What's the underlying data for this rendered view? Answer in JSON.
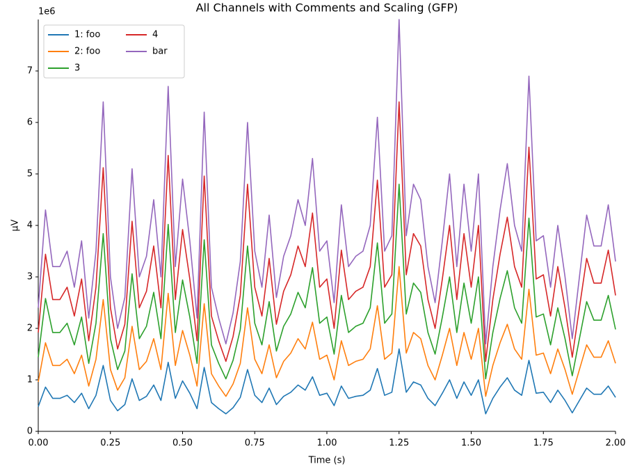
{
  "chart_data": {
    "type": "line",
    "title": "All Channels with Comments and Scaling (GFP)",
    "x_label": "Time (s)",
    "y_label": "µV",
    "y_offset_label": "1e6",
    "x": [
      0,
      0.025,
      0.05,
      0.075,
      0.1,
      0.125,
      0.15,
      0.175,
      0.2,
      0.225,
      0.25,
      0.275,
      0.3,
      0.325,
      0.35,
      0.375,
      0.4,
      0.425,
      0.45,
      0.475,
      0.5,
      0.525,
      0.55,
      0.575,
      0.6,
      0.625,
      0.65,
      0.675,
      0.7,
      0.725,
      0.75,
      0.775,
      0.8,
      0.825,
      0.85,
      0.875,
      0.9,
      0.925,
      0.95,
      0.975,
      1,
      1.025,
      1.05,
      1.075,
      1.1,
      1.125,
      1.15,
      1.175,
      1.2,
      1.225,
      1.25,
      1.275,
      1.3,
      1.325,
      1.35,
      1.375,
      1.4,
      1.425,
      1.45,
      1.475,
      1.5,
      1.525,
      1.55,
      1.575,
      1.6,
      1.625,
      1.65,
      1.675,
      1.7,
      1.725,
      1.75,
      1.775,
      1.8,
      1.825,
      1.85,
      1.875,
      1.9,
      1.925,
      1.95,
      1.975,
      2
    ],
    "series": [
      {
        "name": "1: foo",
        "color": "#1f77b4",
        "values": [
          0.48,
          0.86,
          0.64,
          0.64,
          0.7,
          0.56,
          0.74,
          0.44,
          0.7,
          1.28,
          0.6,
          0.4,
          0.52,
          1.02,
          0.6,
          0.68,
          0.9,
          0.6,
          1.34,
          0.64,
          0.98,
          0.74,
          0.44,
          1.24,
          0.56,
          0.44,
          0.34,
          0.46,
          0.66,
          1.2,
          0.7,
          0.56,
          0.84,
          0.52,
          0.68,
          0.76,
          0.9,
          0.8,
          1.06,
          0.7,
          0.74,
          0.5,
          0.88,
          0.64,
          0.68,
          0.7,
          0.8,
          1.22,
          0.7,
          0.76,
          1.6,
          0.76,
          0.96,
          0.9,
          0.64,
          0.5,
          0.74,
          1.0,
          0.64,
          0.96,
          0.7,
          1.0,
          0.34,
          0.64,
          0.86,
          1.04,
          0.8,
          0.7,
          1.38,
          0.74,
          0.76,
          0.56,
          0.8,
          0.6,
          0.36,
          0.6,
          0.84,
          0.72,
          0.72,
          0.88,
          0.66
        ]
      },
      {
        "name": "2: foo",
        "color": "#ff7f0e",
        "values": [
          0.96,
          1.72,
          1.28,
          1.28,
          1.4,
          1.12,
          1.48,
          0.88,
          1.4,
          2.56,
          1.2,
          0.8,
          1.04,
          2.04,
          1.2,
          1.36,
          1.8,
          1.2,
          2.68,
          1.28,
          1.96,
          1.48,
          0.88,
          2.48,
          1.12,
          0.88,
          0.68,
          0.92,
          1.32,
          2.4,
          1.4,
          1.12,
          1.68,
          1.04,
          1.36,
          1.52,
          1.8,
          1.6,
          2.12,
          1.4,
          1.48,
          1.0,
          1.76,
          1.28,
          1.36,
          1.4,
          1.6,
          2.44,
          1.4,
          1.52,
          3.2,
          1.52,
          1.92,
          1.8,
          1.28,
          1.0,
          1.48,
          2.0,
          1.28,
          1.92,
          1.4,
          2.0,
          0.68,
          1.28,
          1.72,
          2.08,
          1.6,
          1.4,
          2.76,
          1.48,
          1.52,
          1.12,
          1.6,
          1.2,
          0.72,
          1.2,
          1.68,
          1.44,
          1.44,
          1.76,
          1.32
        ]
      },
      {
        "name": "3",
        "color": "#2ca02c",
        "values": [
          1.44,
          2.58,
          1.92,
          1.92,
          2.1,
          1.68,
          2.22,
          1.32,
          2.1,
          3.84,
          1.8,
          1.2,
          1.56,
          3.06,
          1.8,
          2.04,
          2.7,
          1.8,
          4.02,
          1.92,
          2.94,
          2.22,
          1.32,
          3.72,
          1.68,
          1.32,
          1.02,
          1.38,
          1.98,
          3.6,
          2.1,
          1.68,
          2.52,
          1.56,
          2.04,
          2.28,
          2.7,
          2.4,
          3.18,
          2.1,
          2.22,
          1.5,
          2.64,
          1.92,
          2.04,
          2.1,
          2.4,
          3.66,
          2.1,
          2.28,
          4.8,
          2.28,
          2.88,
          2.7,
          1.92,
          1.5,
          2.22,
          3.0,
          1.92,
          2.88,
          2.1,
          3.0,
          1.02,
          1.92,
          2.58,
          3.12,
          2.4,
          2.1,
          4.14,
          2.22,
          2.28,
          1.68,
          2.4,
          1.8,
          1.08,
          1.8,
          2.52,
          2.16,
          2.16,
          2.64,
          1.98
        ]
      },
      {
        "name": "4",
        "color": "#d62728",
        "values": [
          1.92,
          3.44,
          2.56,
          2.56,
          2.8,
          2.24,
          2.96,
          1.76,
          2.8,
          5.12,
          2.4,
          1.6,
          2.08,
          4.08,
          2.4,
          2.72,
          3.6,
          2.4,
          5.36,
          2.56,
          3.92,
          2.96,
          1.76,
          4.96,
          2.24,
          1.76,
          1.36,
          1.84,
          2.64,
          4.8,
          2.8,
          2.24,
          3.36,
          2.08,
          2.72,
          3.04,
          3.6,
          3.2,
          4.24,
          2.8,
          2.96,
          2.0,
          3.52,
          2.56,
          2.72,
          2.8,
          3.2,
          4.88,
          2.8,
          3.04,
          6.4,
          3.04,
          3.84,
          3.6,
          2.56,
          2.0,
          2.96,
          4.0,
          2.56,
          3.84,
          2.8,
          4.0,
          1.36,
          2.56,
          3.44,
          4.16,
          3.2,
          2.8,
          5.52,
          2.96,
          3.04,
          2.24,
          3.2,
          2.4,
          1.44,
          2.4,
          3.36,
          2.88,
          2.88,
          3.52,
          2.64
        ]
      },
      {
        "name": "bar",
        "color": "#9467bd",
        "values": [
          2.4,
          4.3,
          3.2,
          3.2,
          3.5,
          2.8,
          3.7,
          2.2,
          3.5,
          6.4,
          3.0,
          2.0,
          2.6,
          5.1,
          3.0,
          3.4,
          4.5,
          3.0,
          6.7,
          3.2,
          4.9,
          3.7,
          2.2,
          6.2,
          2.8,
          2.2,
          1.7,
          2.3,
          3.3,
          6.0,
          3.5,
          2.8,
          4.2,
          2.6,
          3.4,
          3.8,
          4.5,
          4.0,
          5.3,
          3.5,
          3.7,
          2.5,
          4.4,
          3.2,
          3.4,
          3.5,
          4.0,
          6.1,
          3.5,
          3.8,
          8.0,
          3.8,
          4.8,
          4.5,
          3.2,
          2.5,
          3.7,
          5.0,
          3.2,
          4.8,
          3.5,
          5.0,
          1.7,
          3.2,
          4.3,
          5.2,
          4.0,
          3.5,
          6.9,
          3.7,
          3.8,
          2.8,
          4.0,
          3.0,
          1.8,
          3.0,
          4.2,
          3.6,
          3.6,
          4.4,
          3.3
        ]
      }
    ],
    "xlim": [
      0,
      2
    ],
    "xticks": [
      {
        "value": 0,
        "label": "0.00"
      },
      {
        "value": 0.25,
        "label": "0.25"
      },
      {
        "value": 0.5,
        "label": "0.50"
      },
      {
        "value": 0.75,
        "label": "0.75"
      },
      {
        "value": 1,
        "label": "1.00"
      },
      {
        "value": 1.25,
        "label": "1.25"
      },
      {
        "value": 1.5,
        "label": "1.50"
      },
      {
        "value": 1.75,
        "label": "1.75"
      },
      {
        "value": 2,
        "label": "2.00"
      }
    ],
    "ylim": [
      0,
      8
    ],
    "yticks": [
      0,
      1,
      2,
      3,
      4,
      5,
      6,
      7
    ],
    "grid": false,
    "legend": "upper left",
    "legend_columns": 2
  }
}
